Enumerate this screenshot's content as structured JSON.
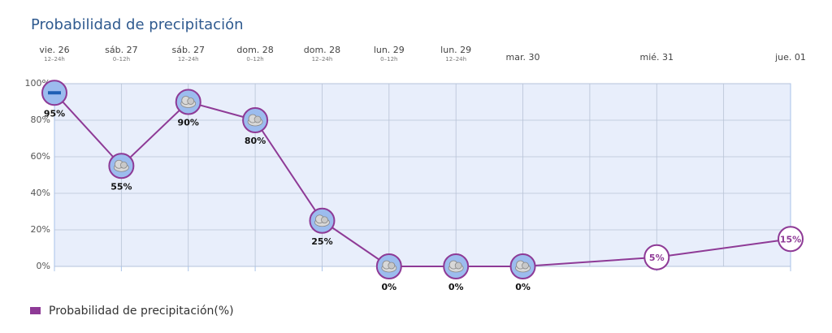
{
  "chart_data": {
    "type": "line",
    "title": "Probabilidad de precipitación",
    "categories": [
      "vie. 26",
      "sáb. 27",
      "sáb. 27",
      "dom. 28",
      "dom. 28",
      "lun. 29",
      "lun. 29",
      "mar. 30",
      "mié. 31",
      "jue. 01"
    ],
    "sublabels": [
      "12–24h",
      "0–12h",
      "12–24h",
      "0–12h",
      "12–24h",
      "0–12h",
      "12–24h",
      null,
      null,
      null
    ],
    "series": [
      {
        "name": "Probabilidad de precipitación(%)",
        "color": "#8e3a96",
        "values": [
          95,
          55,
          90,
          80,
          25,
          0,
          0,
          0,
          5,
          15
        ],
        "value_labels": [
          "95%",
          "55%",
          "90%",
          "80%",
          "25%",
          "0%",
          "0%",
          "0%",
          "5%",
          "15%"
        ]
      }
    ],
    "ylim": [
      0,
      100
    ],
    "yticks": [
      {
        "value": 0,
        "label": "0%"
      },
      {
        "value": 20,
        "label": "20%"
      },
      {
        "value": 40,
        "label": "40%"
      },
      {
        "value": 60,
        "label": "60%"
      },
      {
        "value": 80,
        "label": "80%"
      },
      {
        "value": 100,
        "label": "100%"
      }
    ],
    "grid": true
  }
}
